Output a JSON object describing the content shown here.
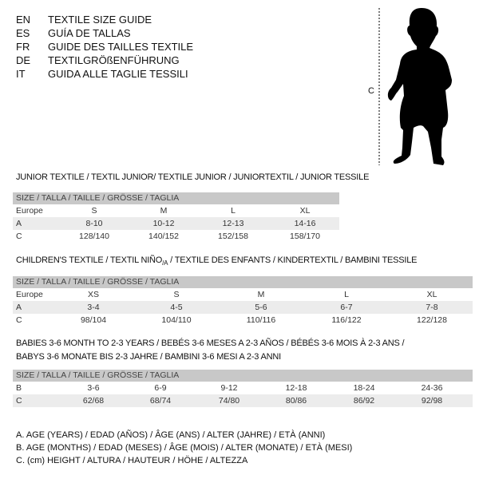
{
  "languages": [
    {
      "code": "EN",
      "title": "TEXTILE SIZE GUIDE"
    },
    {
      "code": "ES",
      "title": "GUÍA DE TALLAS"
    },
    {
      "code": "FR",
      "title": "GUIDE DES TAILLES TEXTILE"
    },
    {
      "code": "DE",
      "title": "TEXTILGRÖßENFÜHRUNG"
    },
    {
      "code": "IT",
      "title": "GUIDA ALLE TAGLIE TESSILI"
    }
  ],
  "figure": {
    "measure_label": "C"
  },
  "junior": {
    "title": "JUNIOR TEXTILE / TEXTIL JUNIOR/ TEXTILE JUNIOR / JUNIORTEXTIL / JUNIOR TESSILE",
    "header": "SIZE / TALLA / TAILLE / GRÖSSE / TAGLIA",
    "rows": [
      {
        "label": "Europe",
        "values": [
          "S",
          "M",
          "L",
          "XL"
        ]
      },
      {
        "label": "A",
        "values": [
          "8-10",
          "10-12",
          "12-13",
          "14-16"
        ]
      },
      {
        "label": "C",
        "values": [
          "128/140",
          "140/152",
          "152/158",
          "158/170"
        ]
      }
    ]
  },
  "children": {
    "title": "CHILDREN'S TEXTILE / TEXTIL NIÑO",
    "title_sub": "/A",
    "title_rest": " / TEXTILE DES ENFANTS / KINDERTEXTIL / BAMBINI TESSILE",
    "header": "SIZE / TALLA / TAILLE / GRÖSSE / TAGLIA",
    "rows": [
      {
        "label": "Europe",
        "values": [
          "XS",
          "S",
          "M",
          "L",
          "XL"
        ]
      },
      {
        "label": "A",
        "values": [
          "3-4",
          "4-5",
          "5-6",
          "6-7",
          "7-8"
        ]
      },
      {
        "label": "C",
        "values": [
          "98/104",
          "104/110",
          "110/116",
          "116/122",
          "122/128"
        ]
      }
    ]
  },
  "babies": {
    "title_line1": "BABIES 3-6 MONTH TO 2-3 YEARS / BEBÉS 3-6 MESES A 2-3 AÑOS / BÉBÉS 3-6 MOIS À 2-3 ANS /",
    "title_line2": "BABYS 3-6 MONATE BIS 2-3 JAHRE / BAMBINI 3-6 MESI A 2-3 ANNI",
    "header": "SIZE / TALLA / TAILLE / GRÖSSE / TAGLIA",
    "rows": [
      {
        "label": "B",
        "values": [
          "3-6",
          "6-9",
          "9-12",
          "12-18",
          "18-24",
          "24-36"
        ]
      },
      {
        "label": "C",
        "values": [
          "62/68",
          "68/74",
          "74/80",
          "80/86",
          "86/92",
          "92/98"
        ]
      }
    ]
  },
  "legend": [
    "A. AGE (YEARS) / EDAD (AÑOS) / ÂGE (ANS) / ALTER (JAHRE) / ETÀ (ANNI)",
    "B. AGE (MONTHS) / EDAD (MESES) / ÂGE (MOIS) / ALTER (MONATE) / ETÀ (MESI)",
    "C. (cm) HEIGHT / ALTURA / HAUTEUR / HÖHE / ALTEZZA"
  ],
  "colors": {
    "header_bg": "#c8c8c8",
    "alt_row_bg": "#ececec"
  }
}
